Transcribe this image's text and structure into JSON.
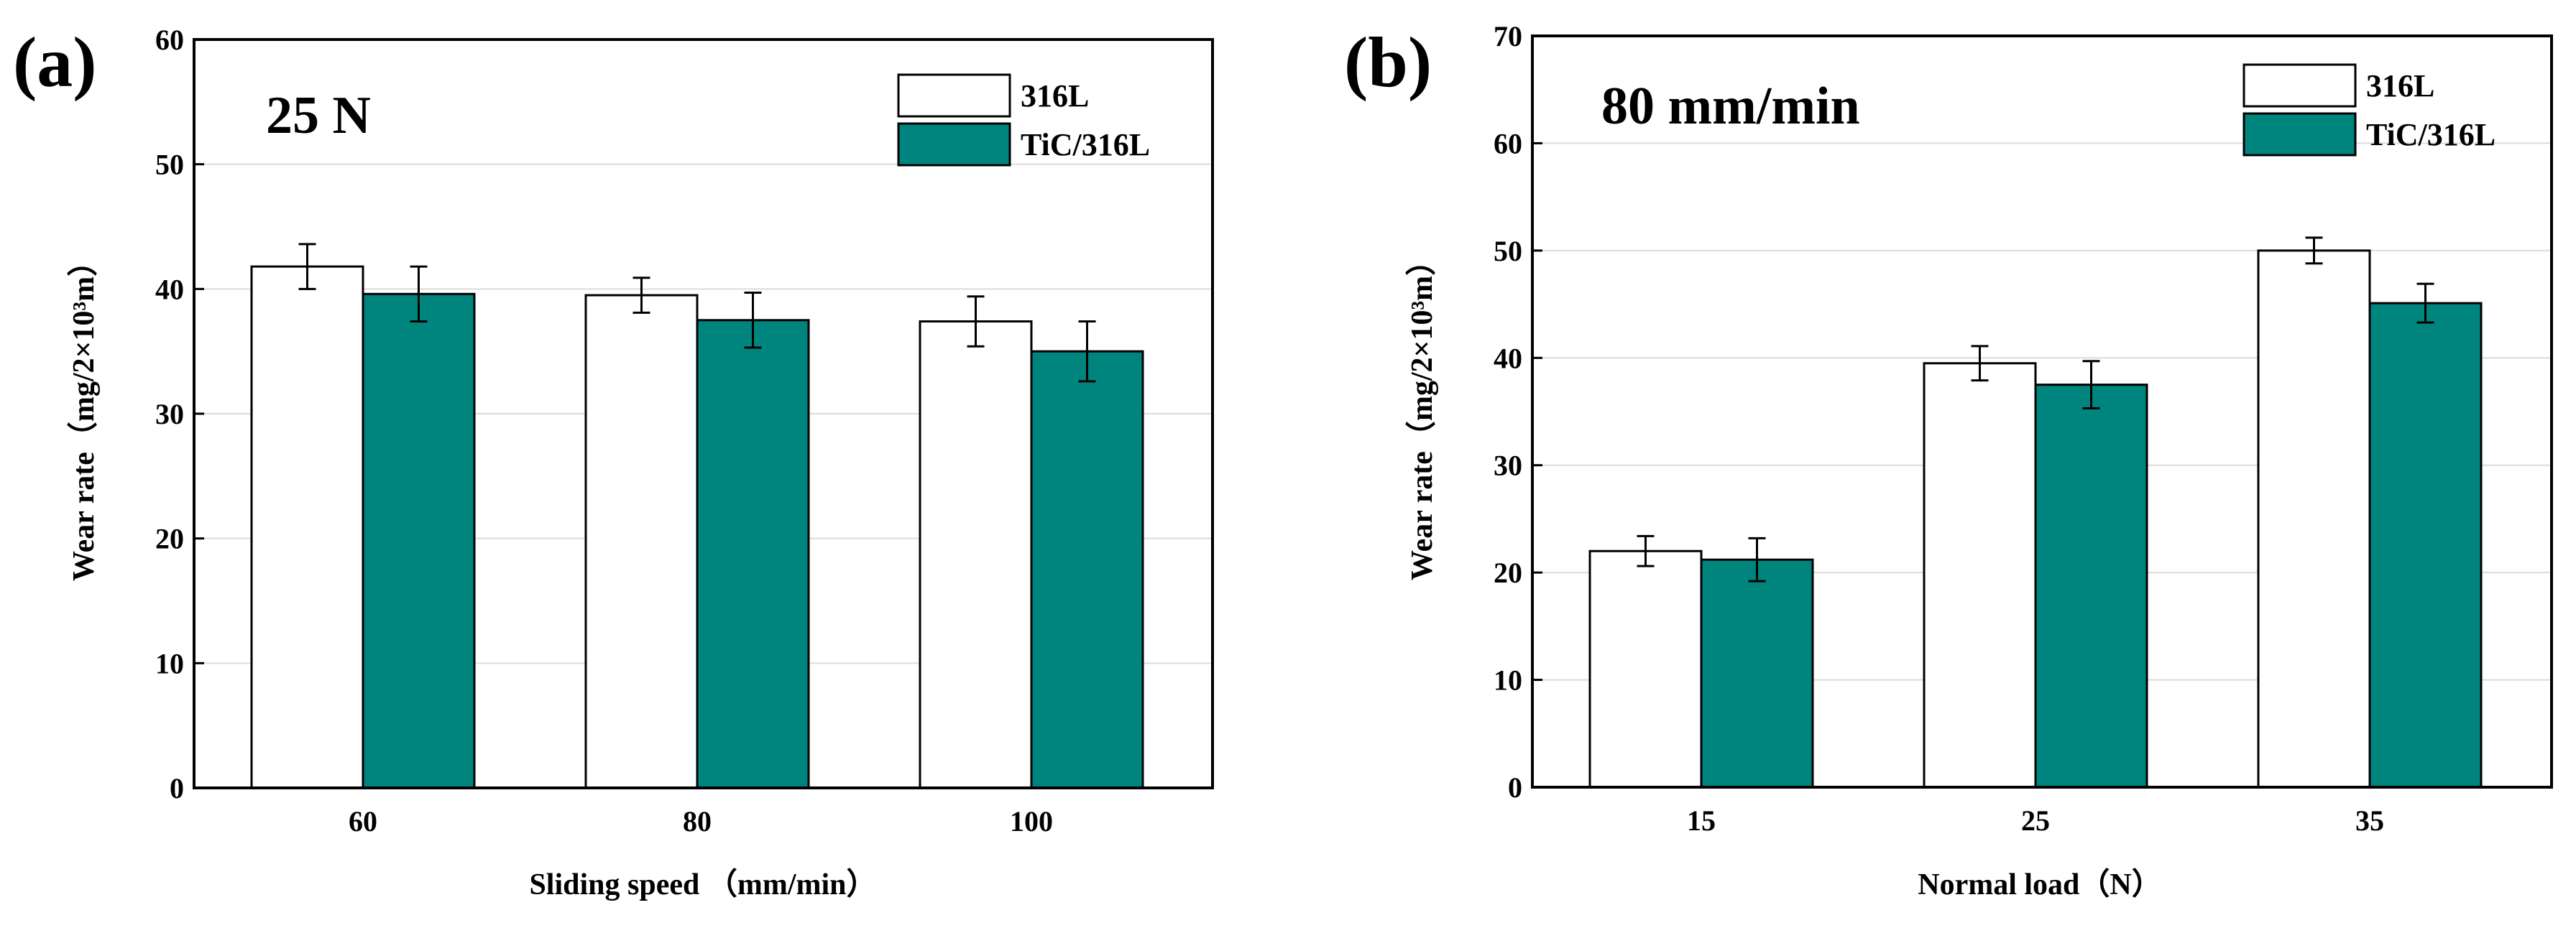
{
  "colors": {
    "series_316L": "#ffffff",
    "series_TiC": "#00857e",
    "bar_stroke": "#000000",
    "grid": "#dcdcdc"
  },
  "chart_data": [
    {
      "type": "bar",
      "panel_label": "(a)",
      "annotation": "25 N",
      "title": "",
      "categories": [
        "60",
        "80",
        "100"
      ],
      "series": [
        {
          "name": "316L",
          "values": [
            41.8,
            39.5,
            37.4
          ],
          "errors": [
            1.8,
            1.4,
            2.0
          ]
        },
        {
          "name": "TiC/316L",
          "values": [
            39.6,
            37.5,
            35.0
          ],
          "errors": [
            2.2,
            2.2,
            2.4
          ]
        }
      ],
      "xlabel": "Sliding speed （mm/min）",
      "ylabel": "Wear rate（mg/2×10³m）",
      "ylim": [
        0,
        60
      ],
      "yticks": [
        "0",
        "10",
        "20",
        "30",
        "40",
        "50",
        "60"
      ],
      "grid": true,
      "legend_position": "top-right"
    },
    {
      "type": "bar",
      "panel_label": "(b)",
      "annotation": "80 mm/min",
      "title": "",
      "categories": [
        "15",
        "25",
        "35"
      ],
      "series": [
        {
          "name": "316L",
          "values": [
            22.0,
            39.5,
            50.0
          ],
          "errors": [
            1.4,
            1.6,
            1.2
          ]
        },
        {
          "name": "TiC/316L",
          "values": [
            21.2,
            37.5,
            45.1
          ],
          "errors": [
            2.0,
            2.2,
            1.8
          ]
        }
      ],
      "xlabel": "Normal load（N）",
      "ylabel": "Wear rate（mg/2×10³m）",
      "ylim": [
        0,
        70
      ],
      "yticks": [
        "0",
        "10",
        "20",
        "30",
        "40",
        "50",
        "60",
        "70"
      ],
      "grid": true,
      "legend_position": "top-right"
    }
  ]
}
